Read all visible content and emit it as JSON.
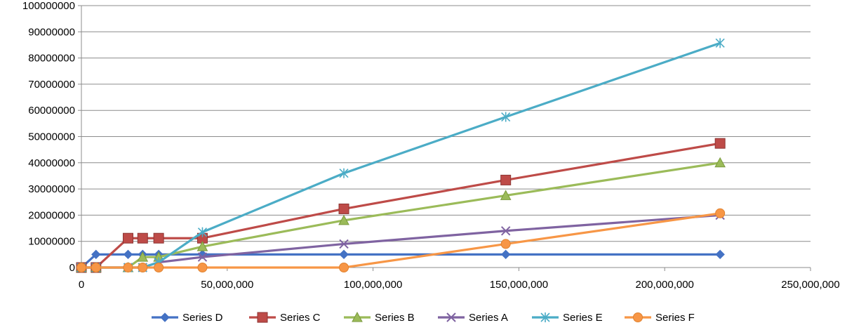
{
  "chart_data": {
    "type": "line",
    "title": "",
    "xlabel": "",
    "ylabel": "",
    "xlim": [
      0,
      250000000
    ],
    "ylim": [
      0,
      100000000
    ],
    "x_ticks": [
      0,
      50000000,
      100000000,
      150000000,
      200000000,
      250000000
    ],
    "x_tick_labels": [
      "0",
      "50,000,000",
      "100,000,000",
      "150,000,000",
      "200,000,000",
      "250,000,000"
    ],
    "y_ticks": [
      0,
      10000000,
      20000000,
      30000000,
      40000000,
      50000000,
      60000000,
      70000000,
      80000000,
      90000000,
      100000000
    ],
    "y_tick_labels": [
      "0",
      "10000000",
      "20000000",
      "30000000",
      "40000000",
      "50000000",
      "60000000",
      "70000000",
      "80000000",
      "90000000",
      "100000000"
    ],
    "grid": "horizontal",
    "legend_position": "bottom",
    "series": [
      {
        "name": "Series D",
        "color": "#4472C4",
        "marker": "diamond",
        "x": [
          0,
          5000000,
          16000000,
          21000000,
          26500000,
          41500000,
          90000000,
          145500000,
          219000000
        ],
        "y": [
          0,
          5000000,
          5000000,
          5000000,
          5000000,
          5000000,
          5000000,
          5000000,
          5000000
        ]
      },
      {
        "name": "Series C",
        "color": "#BE4B48",
        "marker": "square",
        "x": [
          0,
          5000000,
          16000000,
          21000000,
          26500000,
          41500000,
          90000000,
          145500000,
          219000000
        ],
        "y": [
          0,
          0,
          11200000,
          11200000,
          11200000,
          11200000,
          22400000,
          33400000,
          47400000
        ]
      },
      {
        "name": "Series B",
        "color": "#9BBB59",
        "marker": "triangle",
        "x": [
          0,
          5000000,
          16000000,
          21000000,
          26500000,
          41500000,
          90000000,
          145500000,
          219000000
        ],
        "y": [
          0,
          0,
          0,
          4000000,
          4000000,
          8000000,
          18000000,
          27500000,
          40000000
        ]
      },
      {
        "name": "Series A",
        "color": "#7F63A1",
        "marker": "x",
        "x": [
          0,
          5000000,
          16000000,
          21000000,
          26500000,
          41500000,
          90000000,
          145500000,
          219000000
        ],
        "y": [
          0,
          0,
          0,
          0,
          2000000,
          4000000,
          9000000,
          14000000,
          20000000
        ]
      },
      {
        "name": "Series E",
        "color": "#4BACC6",
        "marker": "star",
        "x": [
          0,
          5000000,
          16000000,
          21000000,
          26500000,
          41500000,
          90000000,
          145500000,
          219000000
        ],
        "y": [
          0,
          0,
          0,
          0,
          2000000,
          13500000,
          36000000,
          57500000,
          85700000
        ]
      },
      {
        "name": "Series F",
        "color": "#F79646",
        "marker": "circle",
        "x": [
          0,
          5000000,
          16000000,
          21000000,
          26500000,
          41500000,
          90000000,
          145500000,
          219000000
        ],
        "y": [
          0,
          0,
          0,
          0,
          0,
          0,
          0,
          9000000,
          20700000
        ]
      }
    ]
  }
}
